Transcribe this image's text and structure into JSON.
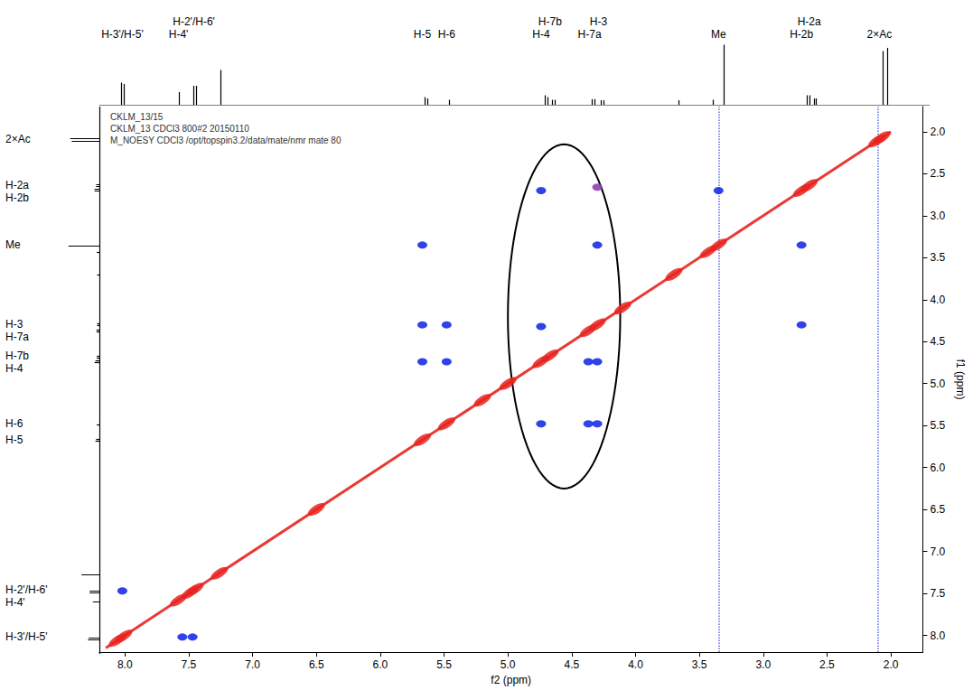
{
  "chart_data": {
    "type": "scatter",
    "header_lines": [
      "CKLM_13/15",
      "CKLM_13 CDCl3 800#2 20150110",
      "M_NOESY CDCl3 /opt/topspin3.2/data/mate/nmr mate 80"
    ],
    "x_label": "f2 (ppm)",
    "y_label": "f1 (ppm)",
    "xlim": [
      8.2,
      1.75
    ],
    "ylim": [
      8.2,
      1.7
    ],
    "xticks": [
      {
        "value": 8,
        "label": "8.0"
      },
      7.5,
      {
        "value": 7,
        "label": "7.0"
      },
      6.5,
      {
        "value": 6,
        "label": "6.0"
      },
      5.5,
      {
        "value": 5,
        "label": "5.0"
      },
      4.5,
      {
        "value": 4,
        "label": "4.0"
      },
      3.5,
      {
        "value": 3,
        "label": "3.0"
      },
      2.5,
      {
        "value": 2,
        "label": "2.0"
      }
    ],
    "yticks": [
      {
        "value": 2,
        "label": "2.0"
      },
      2.5,
      {
        "value": 3,
        "label": "3.0"
      },
      3.5,
      {
        "value": 4,
        "label": "4.0"
      },
      4.5,
      {
        "value": 5,
        "label": "5.0"
      },
      5.5,
      {
        "value": 6,
        "label": "6.0"
      },
      6.5,
      {
        "value": 7,
        "label": "7.0"
      },
      7.5,
      {
        "value": 8,
        "label": "8.0"
      }
    ],
    "grid": false,
    "diagonal": {
      "color": "#e8231f",
      "from": 8.15,
      "to": 2.0
    },
    "noise_ridges": {
      "color": "#3344dd",
      "x": [
        3.35,
        2.1
      ]
    },
    "series": [
      {
        "type": "scatter",
        "marker": "ellipse",
        "color": "#e8231f",
        "x": [
          8.06,
          8.01,
          7.58,
          7.49,
          7.45,
          7.26,
          6.5,
          5.67,
          5.48,
          5.2,
          5.0,
          4.74,
          4.67,
          4.37,
          4.3,
          4.1,
          3.7,
          3.43,
          3.35,
          2.7,
          2.64,
          2.11,
          2.07
        ],
        "y": [
          8.06,
          8.01,
          7.58,
          7.49,
          7.45,
          7.26,
          6.5,
          5.67,
          5.48,
          5.2,
          5.0,
          4.74,
          4.67,
          4.37,
          4.3,
          4.1,
          3.7,
          3.43,
          3.35,
          2.7,
          2.64,
          2.11,
          2.07
        ]
      },
      {
        "type": "scatter",
        "marker": "circle",
        "color": "#1a2ee6",
        "x": [
          8.02,
          7.47,
          7.55,
          5.67,
          5.48,
          5.67,
          5.48,
          5.67,
          4.74,
          4.74,
          4.74,
          4.37,
          4.3,
          4.3,
          4.37,
          4.3,
          2.7,
          2.7,
          3.35
        ],
        "y": [
          7.47,
          8.02,
          8.02,
          4.3,
          4.3,
          4.74,
          4.74,
          3.35,
          2.7,
          4.32,
          5.48,
          4.74,
          4.74,
          3.35,
          5.48,
          5.48,
          4.3,
          3.35,
          2.7
        ]
      },
      {
        "type": "scatter",
        "marker": "circle",
        "color": "#8e3fb0",
        "x": [
          4.3
        ],
        "y": [
          2.66
        ]
      }
    ],
    "highlight": {
      "x": [
        5.0,
        4.12
      ],
      "y": [
        2.15,
        6.25
      ]
    },
    "spectrum_1d": {
      "color": "#000000",
      "height_range": [
        0,
        1
      ],
      "ppm": [
        8.03,
        8.01,
        7.58,
        7.47,
        7.45,
        7.26,
        5.67,
        5.65,
        5.48,
        4.74,
        4.72,
        4.68,
        4.66,
        4.37,
        4.35,
        4.3,
        4.28,
        3.7,
        3.43,
        3.35,
        2.7,
        2.68,
        2.65,
        2.63,
        2.11,
        2.08
      ],
      "height": [
        0.35,
        0.33,
        0.2,
        0.3,
        0.3,
        0.55,
        0.12,
        0.1,
        0.08,
        0.15,
        0.12,
        0.08,
        0.08,
        0.09,
        0.09,
        0.07,
        0.07,
        0.07,
        0.08,
        0.95,
        0.15,
        0.15,
        0.1,
        0.1,
        0.85,
        0.9
      ]
    },
    "top_labels": [
      {
        "text": "H-3'/H-5'",
        "ppm": 8.02
      },
      {
        "text": "H-4'",
        "ppm": 7.58
      },
      {
        "text": "H-2'/H-6'",
        "ppm": 7.46
      },
      {
        "text": "H-5",
        "ppm": 5.67
      },
      {
        "text": "H-6",
        "ppm": 5.48
      },
      {
        "text": "H-4",
        "ppm": 4.74
      },
      {
        "text": "H-7b",
        "ppm": 4.67
      },
      {
        "text": "H-7a",
        "ppm": 4.36
      },
      {
        "text": "H-3",
        "ppm": 4.29
      },
      {
        "text": "Me",
        "ppm": 3.35
      },
      {
        "text": "H-2b",
        "ppm": 2.7
      },
      {
        "text": "H-2a",
        "ppm": 2.64
      },
      {
        "text": "2×Ac",
        "ppm": 2.09
      }
    ],
    "left_labels": [
      {
        "text": "2×Ac",
        "ppm": 2.09
      },
      {
        "text": "H-2a",
        "ppm": 2.64
      },
      {
        "text": "H-2b",
        "ppm": 2.7
      },
      {
        "text": "Me",
        "ppm": 3.35
      },
      {
        "text": "H-3",
        "ppm": 4.29
      },
      {
        "text": "H-7a",
        "ppm": 4.36
      },
      {
        "text": "H-7b",
        "ppm": 4.67
      },
      {
        "text": "H-4",
        "ppm": 4.74
      },
      {
        "text": "H-6",
        "ppm": 5.48
      },
      {
        "text": "H-5",
        "ppm": 5.67
      },
      {
        "text": "H-2'/H-6'",
        "ppm": 7.46
      },
      {
        "text": "H-4'",
        "ppm": 7.58
      },
      {
        "text": "H-3'/H-5'",
        "ppm": 8.02
      }
    ]
  }
}
